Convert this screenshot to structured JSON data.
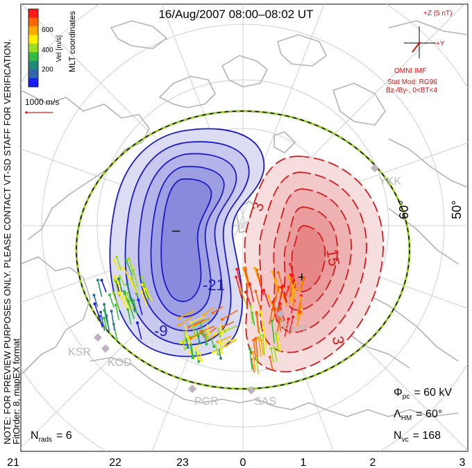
{
  "title": "16/Aug/2007 08:00–08:02 UT",
  "colorbar": {
    "label": "Vel [m/s]",
    "ticks": [
      "600",
      "400",
      "200"
    ],
    "colors": [
      "#ff1a1a",
      "#ff6600",
      "#ffaa00",
      "#ffee00",
      "#99dd22",
      "#33bb44",
      "#228877",
      "#3366aa",
      "#1a1aff"
    ]
  },
  "coords_label": "MLT coordinates",
  "scale_label": "1000 m/s",
  "side_note_1": "NOTE: FOR PREVIEW PURPOSES ONLY. PLEASE CONTACT VT-SD STAFF FOR VERIFICATION.",
  "side_note_2": "FitOrder: 8, mapEX format",
  "imf": {
    "z_label": "+Z (5 nT)",
    "y_label": "+Y",
    "source": "OMNI IMF",
    "stat_mod": "Stat Mod: RG96",
    "condition": "Bz-/By-, 0<BT<4"
  },
  "stations": {
    "ksr": "KSR",
    "kod": "KOD",
    "pgr": "PGR",
    "sas": "SAS",
    "rkn": "RKN",
    "ykk": "YKK"
  },
  "lat_labels": {
    "lat60": "60°",
    "lat50": "50°"
  },
  "contours": {
    "neg_label_1": "-21",
    "neg_label_2": "-9",
    "pos_label_1": "15",
    "pos_label_2": "3",
    "pos_label_3": "3",
    "min_marker": "–",
    "max_marker": "+"
  },
  "params": {
    "nrads_label": "N",
    "nrads_sub": "rads",
    "nrads_value": "= 6",
    "phi_label": "Φ",
    "phi_sub": "pc",
    "phi_value": "= 60 kV",
    "lambda_label": "Λ",
    "lambda_sub": "HM",
    "lambda_value": "= 60°",
    "nvc_label": "N",
    "nvc_sub": "vc",
    "nvc_value": "= 168"
  },
  "mlt_axis": [
    "21",
    "22",
    "23",
    "0",
    "1",
    "2",
    "3"
  ],
  "colors": {
    "negative_cell": "#3b3bd6",
    "positive_cell": "#d62020",
    "outline": "#000000",
    "heppner_boundary": "#9acd32",
    "land": "#b0b0b0",
    "grid": "#c8c8c8"
  }
}
